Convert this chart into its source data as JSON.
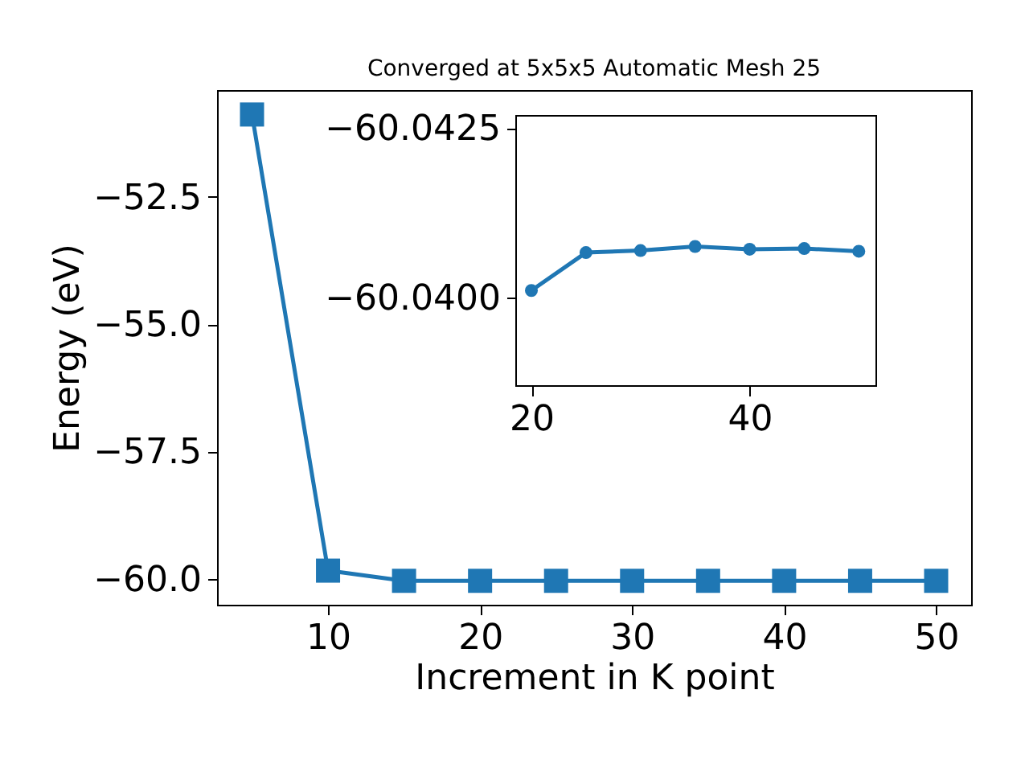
{
  "chart_data": [
    {
      "type": "line",
      "title": "Converged at 5x5x5 Automatic Mesh 25",
      "xlabel": "Increment in K point",
      "ylabel": "Energy (eV)",
      "marker": "square",
      "grid": false,
      "x": [
        5,
        10,
        15,
        20,
        25,
        30,
        35,
        40,
        45,
        50
      ],
      "series": [
        {
          "color": "#1f77b4",
          "values": [
            -50.88,
            -59.84,
            -60.04,
            -60.04,
            -60.04,
            -60.04,
            -60.04,
            -60.04,
            -60.04,
            -60.04
          ]
        }
      ],
      "xlim": [
        2.7,
        52.3
      ],
      "ylim": [
        -60.51,
        -50.4
      ],
      "xticks": [
        10,
        20,
        30,
        40,
        50
      ],
      "yticks": [
        {
          "value": -60.0,
          "label": "−60.0"
        },
        {
          "value": -57.5,
          "label": "−57.5"
        },
        {
          "value": -55.0,
          "label": "−55.0"
        },
        {
          "value": -52.5,
          "label": "−52.5"
        }
      ]
    },
    {
      "type": "line",
      "marker": "circle",
      "grid": false,
      "x": [
        20,
        25,
        30,
        35,
        40,
        45,
        50
      ],
      "series": [
        {
          "color": "#1f77b4",
          "values": [
            -60.0401,
            -60.04066,
            -60.04069,
            -60.04075,
            -60.04071,
            -60.04072,
            -60.04068
          ]
        }
      ],
      "xlim": [
        18.6,
        51.6
      ],
      "ylim": [
        -60.03869,
        -60.04268
      ],
      "xticks": [
        20,
        40
      ],
      "yticks": [
        {
          "value": -60.0425,
          "label": "−60.0425"
        },
        {
          "value": -60.04,
          "label": "−60.0400"
        }
      ]
    }
  ]
}
